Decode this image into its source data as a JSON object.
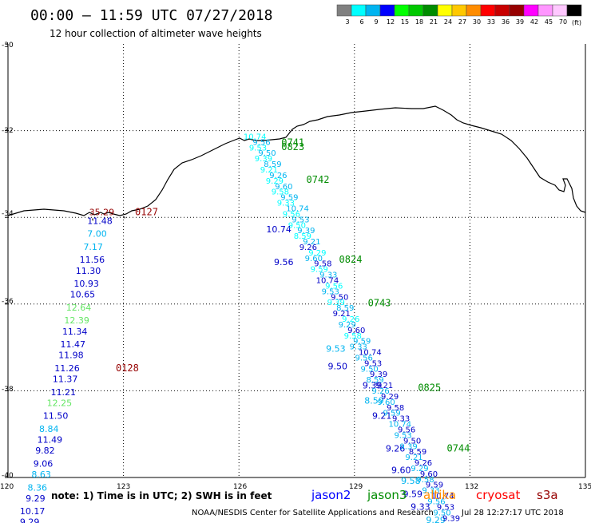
{
  "title": "00:00 – 11:59 UTC 07/27/2018",
  "subtitle": "12 hour collection of altimeter wave heights",
  "color_scale": {
    "unit": "(ft)",
    "swatches": [
      {
        "color": "#808080",
        "label": "3"
      },
      {
        "color": "#00ffff",
        "label": "6"
      },
      {
        "color": "#00b4f0",
        "label": "9"
      },
      {
        "color": "#0000ff",
        "label": "12"
      },
      {
        "color": "#00ff00",
        "label": "15"
      },
      {
        "color": "#00c800",
        "label": "18"
      },
      {
        "color": "#008c00",
        "label": "21"
      },
      {
        "color": "#ffff00",
        "label": "24"
      },
      {
        "color": "#ffc800",
        "label": "27"
      },
      {
        "color": "#ff8c00",
        "label": "30"
      },
      {
        "color": "#ff0000",
        "label": "33"
      },
      {
        "color": "#c80000",
        "label": "36"
      },
      {
        "color": "#960000",
        "label": "39"
      },
      {
        "color": "#ff00ff",
        "label": "42"
      },
      {
        "color": "#ff96ff",
        "label": "45"
      },
      {
        "color": "#ffc8ff",
        "label": "70"
      },
      {
        "color": "#000000",
        "label": ""
      }
    ]
  },
  "axes": {
    "lat_labels": [
      "-30",
      "-32",
      "-34",
      "-36",
      "-38",
      "-40"
    ],
    "lon_labels": [
      "120",
      "123",
      "126",
      "129",
      "132",
      "135"
    ]
  },
  "wave_heights": [
    {
      "value": "35.29",
      "color": "#960000",
      "lon": 122.4,
      "lat": -33.95
    },
    {
      "value": "11.48",
      "color": "#0000c8",
      "lon": 122.35,
      "lat": -34.15
    },
    {
      "value": "7.00",
      "color": "#00b4f0",
      "lon": 122.35,
      "lat": -34.45
    },
    {
      "value": "7.17",
      "color": "#00b4f0",
      "lon": 122.25,
      "lat": -34.75
    },
    {
      "value": "11.56",
      "color": "#0000c8",
      "lon": 122.15,
      "lat": -35.05
    },
    {
      "value": "11.30",
      "color": "#0000c8",
      "lon": 122.05,
      "lat": -35.3
    },
    {
      "value": "10.93",
      "color": "#0000c8",
      "lon": 122.0,
      "lat": -35.6
    },
    {
      "value": "10.65",
      "color": "#0000c8",
      "lon": 121.9,
      "lat": -35.85
    },
    {
      "value": "12.64",
      "color": "#64e664",
      "lon": 121.8,
      "lat": -36.15
    },
    {
      "value": "12.39",
      "color": "#64e664",
      "lon": 121.75,
      "lat": -36.45
    },
    {
      "value": "11.34",
      "color": "#0000c8",
      "lon": 121.7,
      "lat": -36.7
    },
    {
      "value": "11.47",
      "color": "#0000c8",
      "lon": 121.65,
      "lat": -37.0
    },
    {
      "value": "11.98",
      "color": "#0000c8",
      "lon": 121.6,
      "lat": -37.25
    },
    {
      "value": "11.26",
      "color": "#0000c8",
      "lon": 121.5,
      "lat": -37.55
    },
    {
      "value": "11.37",
      "color": "#0000c8",
      "lon": 121.45,
      "lat": -37.8
    },
    {
      "value": "11.21",
      "color": "#0000c8",
      "lon": 121.4,
      "lat": -38.1
    },
    {
      "value": "12.25",
      "color": "#64e664",
      "lon": 121.3,
      "lat": -38.35
    },
    {
      "value": "11.50",
      "color": "#0000c8",
      "lon": 121.2,
      "lat": -38.65
    },
    {
      "value": "8.84",
      "color": "#00b4f0",
      "lon": 121.1,
      "lat": -38.95
    },
    {
      "value": "11.49",
      "color": "#0000c8",
      "lon": 121.05,
      "lat": -39.2
    },
    {
      "value": "9.82",
      "color": "#0000c8",
      "lon": 121.0,
      "lat": -39.45
    },
    {
      "value": "9.06",
      "color": "#0000c8",
      "lon": 120.95,
      "lat": -39.75
    },
    {
      "value": "8.63",
      "color": "#00b4f0",
      "lon": 120.9,
      "lat": -40.0
    },
    {
      "value": "8.36",
      "color": "#00b4f0",
      "lon": 120.8,
      "lat": -40.3
    },
    {
      "value": "9.29",
      "color": "#0000c8",
      "lon": 120.75,
      "lat": -40.55
    },
    {
      "value": "10.17",
      "color": "#0000c8",
      "lon": 120.6,
      "lat": -40.85
    },
    {
      "value": "9.29",
      "color": "#0000c8",
      "lon": 120.6,
      "lat": -41.1
    },
    {
      "value": "10.74",
      "color": "#0000c8",
      "lon": 127.0,
      "lat": -34.35
    },
    {
      "value": "9.56",
      "color": "#0000c8",
      "lon": 127.2,
      "lat": -35.1
    },
    {
      "value": "9.53",
      "color": "#00b4f0",
      "lon": 128.55,
      "lat": -37.1
    },
    {
      "value": "9.50",
      "color": "#0000c8",
      "lon": 128.6,
      "lat": -37.5
    },
    {
      "value": "9.39",
      "color": "#0000c8",
      "lon": 129.5,
      "lat": -37.95
    },
    {
      "value": "8.59",
      "color": "#00b4f0",
      "lon": 129.55,
      "lat": -38.3
    },
    {
      "value": "9.21",
      "color": "#0000c8",
      "lon": 129.75,
      "lat": -38.65
    },
    {
      "value": "9.26",
      "color": "#0000c8",
      "lon": 130.1,
      "lat": -39.4
    },
    {
      "value": "9.29",
      "color": "#00b4f0",
      "lon": 131.15,
      "lat": -41.05
    },
    {
      "value": "9.60",
      "color": "#0000c8",
      "lon": 130.25,
      "lat": -39.9
    },
    {
      "value": "9.58",
      "color": "#00b4f0",
      "lon": 130.5,
      "lat": -40.15
    },
    {
      "value": "9.59",
      "color": "#0000c8",
      "lon": 130.55,
      "lat": -40.45
    },
    {
      "value": "9.33",
      "color": "#0000c8",
      "lon": 130.75,
      "lat": -40.75
    }
  ],
  "pass_labels": [
    {
      "text": "0127",
      "color": "#960000",
      "lon": 123.3,
      "lat": -33.95
    },
    {
      "text": "0128",
      "color": "#960000",
      "lon": 122.8,
      "lat": -37.55
    },
    {
      "text": "0741",
      "color": "#008c00",
      "lon": 127.1,
      "lat": -32.35
    },
    {
      "text": "0823",
      "color": "#008c00",
      "lon": 127.1,
      "lat": -32.45
    },
    {
      "text": "0742",
      "color": "#008c00",
      "lon": 127.75,
      "lat": -33.2
    },
    {
      "text": "0824",
      "color": "#008c00",
      "lon": 128.6,
      "lat": -35.05
    },
    {
      "text": "0743",
      "color": "#008c00",
      "lon": 129.35,
      "lat": -36.05
    },
    {
      "text": "0825",
      "color": "#008c00",
      "lon": 130.65,
      "lat": -38.0
    },
    {
      "text": "0744",
      "color": "#008c00",
      "lon": 131.4,
      "lat": -39.4
    }
  ],
  "note": "note: 1) Time is in UTC; 2) SWH is in feet",
  "satellites": [
    {
      "name": "jason2",
      "color": "#0000ff"
    },
    {
      "name": "jason3",
      "color": "#008c00"
    },
    {
      "name": "altika",
      "color": "#ff8c00"
    },
    {
      "name": "cryosat",
      "color": "#ff0000"
    },
    {
      "name": "s3a",
      "color": "#960000"
    }
  ],
  "credit": "NOAA/NESDIS Center for Satellite Applications and Research",
  "timestamp": "Jul 28 12:27:17 UTC 2018"
}
